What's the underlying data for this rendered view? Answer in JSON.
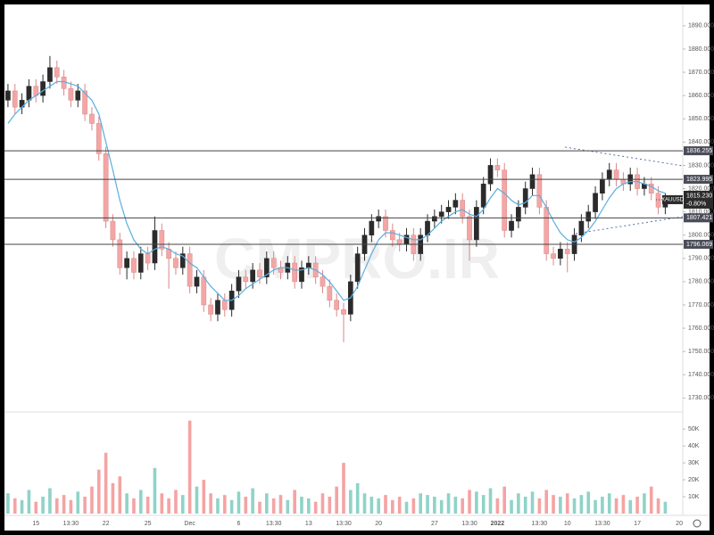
{
  "chart_data": {
    "type": "candlestick",
    "watermark": "CMPRO.IR",
    "symbol": "XAUUSD",
    "last_price": {
      "value": 1815.23,
      "label": "1815.230"
    },
    "change": "-0.80%",
    "up_color": "#2b2b2b",
    "down_color": "#f4a6a6",
    "ylim": [
      1724,
      1898
    ],
    "yticks": [
      {
        "value": 1730,
        "label": "1730.000"
      },
      {
        "value": 1740,
        "label": "1740.000"
      },
      {
        "value": 1750,
        "label": "1750.000"
      },
      {
        "value": 1760,
        "label": "1760.000"
      },
      {
        "value": 1770,
        "label": "1770.000"
      },
      {
        "value": 1780,
        "label": "1780.000"
      },
      {
        "value": 1790,
        "label": "1790.000"
      },
      {
        "value": 1800,
        "label": "1800.000"
      },
      {
        "value": 1810,
        "label": "1810.000"
      },
      {
        "value": 1820,
        "label": "1820.000"
      },
      {
        "value": 1830,
        "label": "1830.000"
      },
      {
        "value": 1840,
        "label": "1840.000"
      },
      {
        "value": 1850,
        "label": "1850.000"
      },
      {
        "value": 1860,
        "label": "1860.000"
      },
      {
        "value": 1870,
        "label": "1870.000"
      },
      {
        "value": 1880,
        "label": "1880.000"
      },
      {
        "value": 1890,
        "label": "1890.000"
      }
    ],
    "levels": [
      {
        "value": 1836.255,
        "label": "1836.255"
      },
      {
        "value": 1823.995,
        "label": "1823.995"
      },
      {
        "value": 1807.421,
        "label": "1807.421"
      },
      {
        "value": 1796.069,
        "label": "1796.069"
      }
    ],
    "categories": [
      null,
      null,
      null,
      null,
      "15",
      null,
      null,
      null,
      null,
      "13:30",
      null,
      null,
      null,
      null,
      "22",
      null,
      null,
      null,
      null,
      null,
      "25",
      null,
      null,
      null,
      null,
      null,
      "Dec",
      null,
      null,
      null,
      null,
      null,
      null,
      "6",
      null,
      null,
      null,
      null,
      "13:30",
      null,
      null,
      null,
      null,
      "13",
      null,
      null,
      null,
      null,
      "13:30",
      null,
      null,
      null,
      null,
      "20",
      null,
      null,
      null,
      null,
      null,
      null,
      null,
      "27",
      null,
      null,
      null,
      null,
      "13:30",
      null,
      null,
      null,
      "2022",
      null,
      null,
      null,
      null,
      null,
      "13:30",
      null,
      null,
      null,
      "10",
      null,
      null,
      null,
      null,
      "13:30",
      null,
      null,
      null,
      null,
      "17",
      null,
      null,
      null,
      null,
      null,
      "20"
    ],
    "open": [
      1858,
      1862,
      1855,
      1858,
      1864,
      1860,
      1866,
      1872,
      1868,
      1863,
      1858,
      1862,
      1852,
      1848,
      1835,
      1806,
      1798,
      1786,
      1790,
      1784,
      1792,
      1788,
      1802,
      1794,
      1790,
      1786,
      1792,
      1778,
      1782,
      1770,
      1766,
      1772,
      1768,
      1776,
      1782,
      1780,
      1785,
      1782,
      1790,
      1786,
      1784,
      1788,
      1780,
      1786,
      1788,
      1782,
      1778,
      1772,
      1768,
      1766,
      1780,
      1792,
      1800,
      1806,
      1808,
      1802,
      1798,
      1796,
      1800,
      1792,
      1800,
      1806,
      1808,
      1810,
      1812,
      1815,
      1808,
      1798,
      1812,
      1822,
      1830,
      1828,
      1802,
      1806,
      1812,
      1820,
      1826,
      1812,
      1792,
      1790,
      1794,
      1792,
      1800,
      1806,
      1810,
      1818,
      1824,
      1828,
      1824,
      1822,
      1826,
      1820,
      1822,
      1818,
      1812,
      null,
      null
    ],
    "high": [
      1865,
      1865,
      1861,
      1867,
      1867,
      1869,
      1877,
      1875,
      1871,
      1866,
      1865,
      1865,
      1855,
      1851,
      1838,
      1809,
      1801,
      1793,
      1793,
      1795,
      1795,
      1808,
      1805,
      1797,
      1793,
      1795,
      1795,
      1785,
      1785,
      1773,
      1775,
      1775,
      1779,
      1785,
      1785,
      1788,
      1788,
      1793,
      1793,
      1789,
      1791,
      1791,
      1789,
      1791,
      1791,
      1785,
      1781,
      1775,
      1771,
      1783,
      1795,
      1803,
      1809,
      1811,
      1811,
      1805,
      1801,
      1803,
      1803,
      1803,
      1809,
      1811,
      1813,
      1815,
      1818,
      1818,
      1811,
      1815,
      1825,
      1833,
      1833,
      1831,
      1809,
      1815,
      1823,
      1829,
      1829,
      1815,
      1795,
      1797,
      1797,
      1803,
      1809,
      1813,
      1821,
      1827,
      1831,
      1831,
      1827,
      1829,
      1829,
      1825,
      1825,
      1821,
      1818,
      null,
      null
    ],
    "low": [
      1855,
      1852,
      1852,
      1855,
      1857,
      1857,
      1863,
      1865,
      1860,
      1855,
      1855,
      1849,
      1845,
      1832,
      1803,
      1795,
      1783,
      1781,
      1781,
      1781,
      1785,
      1785,
      1791,
      1777,
      1783,
      1783,
      1775,
      1775,
      1767,
      1763,
      1763,
      1765,
      1765,
      1773,
      1777,
      1777,
      1779,
      1779,
      1783,
      1781,
      1781,
      1777,
      1777,
      1783,
      1779,
      1775,
      1769,
      1765,
      1754,
      1763,
      1777,
      1789,
      1797,
      1803,
      1799,
      1795,
      1793,
      1793,
      1789,
      1789,
      1797,
      1803,
      1805,
      1807,
      1809,
      1805,
      1789,
      1795,
      1809,
      1819,
      1825,
      1799,
      1799,
      1803,
      1809,
      1817,
      1809,
      1789,
      1787,
      1787,
      1784,
      1789,
      1797,
      1803,
      1807,
      1815,
      1821,
      1821,
      1819,
      1819,
      1817,
      1817,
      1815,
      1809,
      1809,
      null,
      null
    ],
    "close": [
      1862,
      1855,
      1858,
      1864,
      1860,
      1866,
      1872,
      1868,
      1863,
      1858,
      1862,
      1852,
      1848,
      1835,
      1806,
      1798,
      1786,
      1790,
      1784,
      1792,
      1788,
      1802,
      1794,
      1790,
      1786,
      1792,
      1778,
      1782,
      1770,
      1766,
      1772,
      1768,
      1776,
      1782,
      1780,
      1785,
      1782,
      1790,
      1786,
      1784,
      1788,
      1780,
      1786,
      1788,
      1782,
      1778,
      1772,
      1768,
      1766,
      1780,
      1792,
      1800,
      1806,
      1808,
      1802,
      1798,
      1796,
      1800,
      1792,
      1800,
      1806,
      1808,
      1810,
      1812,
      1815,
      1808,
      1798,
      1812,
      1822,
      1830,
      1828,
      1802,
      1806,
      1812,
      1820,
      1826,
      1812,
      1792,
      1790,
      1794,
      1792,
      1800,
      1806,
      1810,
      1818,
      1824,
      1828,
      1824,
      1822,
      1826,
      1820,
      1822,
      1818,
      1812,
      1815,
      null,
      null
    ],
    "ma": {
      "color": "#5aaee0",
      "values": [
        1848,
        1852,
        1855,
        1858,
        1860,
        1862,
        1864,
        1866,
        1866,
        1865,
        1864,
        1861,
        1858,
        1852,
        1840,
        1828,
        1815,
        1805,
        1798,
        1794,
        1792,
        1794,
        1795,
        1794,
        1792,
        1791,
        1788,
        1786,
        1782,
        1778,
        1775,
        1772,
        1772,
        1774,
        1777,
        1779,
        1781,
        1783,
        1785,
        1786,
        1786,
        1785,
        1785,
        1786,
        1785,
        1783,
        1780,
        1776,
        1772,
        1773,
        1778,
        1785,
        1792,
        1798,
        1801,
        1801,
        1800,
        1799,
        1798,
        1798,
        1800,
        1803,
        1806,
        1808,
        1810,
        1811,
        1809,
        1808,
        1811,
        1816,
        1820,
        1818,
        1815,
        1813,
        1814,
        1817,
        1817,
        1812,
        1806,
        1801,
        1798,
        1797,
        1799,
        1802,
        1806,
        1811,
        1816,
        1820,
        1822,
        1823,
        1823,
        1822,
        1821,
        1819,
        1818,
        null,
        null
      ]
    },
    "volume": {
      "up_color": "#8fd3c8",
      "down_color": "#f5a3a3",
      "ylim": [
        0,
        58000
      ],
      "yticks": [
        {
          "value": 10000,
          "label": "10K"
        },
        {
          "value": 20000,
          "label": "20K"
        },
        {
          "value": 30000,
          "label": "30K"
        },
        {
          "value": 40000,
          "label": "40K"
        },
        {
          "value": 50000,
          "label": "50K"
        }
      ],
      "values": [
        12000,
        9000,
        8000,
        14000,
        7000,
        10000,
        15000,
        9000,
        11000,
        8000,
        13000,
        10000,
        16000,
        26000,
        36000,
        18000,
        22000,
        12000,
        9000,
        14000,
        10000,
        27000,
        12000,
        9000,
        14000,
        11000,
        55000,
        16000,
        20000,
        12000,
        9000,
        11000,
        8000,
        13000,
        10000,
        15000,
        7000,
        12000,
        9000,
        11000,
        8000,
        14000,
        10000,
        9000,
        7000,
        12000,
        10000,
        16000,
        30000,
        14000,
        18000,
        12000,
        10000,
        9000,
        11000,
        8000,
        10000,
        7000,
        9000,
        12000,
        11000,
        10000,
        8000,
        12000,
        10000,
        9000,
        14000,
        13000,
        11000,
        15000,
        9000,
        16000,
        8000,
        12000,
        10000,
        13000,
        9000,
        14000,
        11000,
        10000,
        12000,
        9000,
        11000,
        13000,
        8000,
        10000,
        12000,
        9000,
        11000,
        8000,
        10000,
        12000,
        16000,
        9000,
        7000,
        null,
        null
      ]
    },
    "grid": false
  }
}
